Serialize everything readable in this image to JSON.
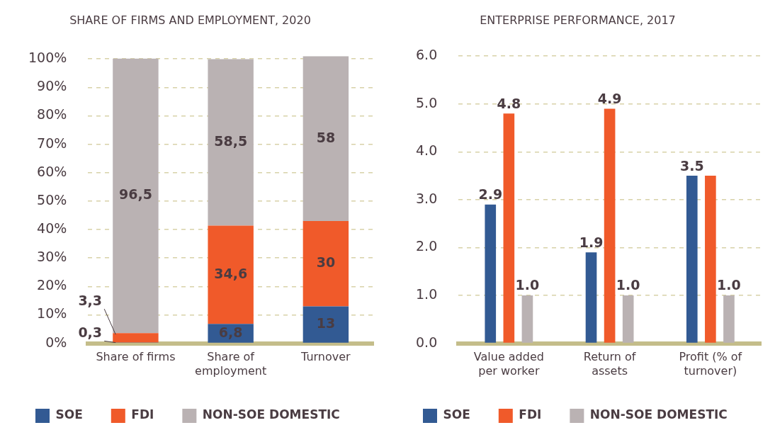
{
  "chart_data": [
    {
      "type": "bar",
      "title": "SHARE OF FIRMS AND EMPLOYMENT, 2020",
      "categories": [
        "Share of firms",
        "Share of employment",
        "Turnover"
      ],
      "stacked": true,
      "ylim": [
        0,
        101
      ],
      "yticks": [
        {
          "value": 0,
          "label": "0%"
        },
        {
          "value": 10,
          "label": "10%"
        },
        {
          "value": 20,
          "label": "20%"
        },
        {
          "value": 30,
          "label": "30%"
        },
        {
          "value": 40,
          "label": "40%"
        },
        {
          "value": 50,
          "label": "50%"
        },
        {
          "value": 60,
          "label": "60%"
        },
        {
          "value": 70,
          "label": "70%"
        },
        {
          "value": 80,
          "label": "80%"
        },
        {
          "value": 90,
          "label": "90%"
        },
        {
          "value": 100,
          "label": "100%"
        }
      ],
      "grid": "y",
      "legend": "bottom",
      "series": [
        {
          "name": "SOE",
          "color": "#325a93",
          "values": [
            0.3,
            6.8,
            13
          ],
          "value_labels": [
            "0,3",
            "6,8",
            "13"
          ]
        },
        {
          "name": "FDI",
          "color": "#f05a2a",
          "values": [
            3.3,
            34.6,
            30
          ],
          "value_labels": [
            "3,3",
            "34,6",
            "30"
          ]
        },
        {
          "name": "NON-SOE DOMESTIC",
          "color": "#bab2b3",
          "values": [
            96.5,
            58.5,
            58
          ],
          "value_labels": [
            "96,5",
            "58,5",
            "58"
          ]
        }
      ]
    },
    {
      "type": "bar",
      "title": "ENTERPRISE PERFORMANCE, 2017",
      "categories": [
        "Value added per worker",
        "Return of assets",
        "Profit (% of turnover)"
      ],
      "ylim": [
        0,
        6
      ],
      "yticks": [
        {
          "value": 0,
          "label": "0.0"
        },
        {
          "value": 1,
          "label": "1.0"
        },
        {
          "value": 2,
          "label": "2.0"
        },
        {
          "value": 3,
          "label": "3.0"
        },
        {
          "value": 4,
          "label": "4.0"
        },
        {
          "value": 5,
          "label": "5.0"
        },
        {
          "value": 6,
          "label": "6.0"
        }
      ],
      "grid": "y",
      "legend": "bottom",
      "series": [
        {
          "name": "SOE",
          "color": "#325a93",
          "values": [
            2.9,
            1.9,
            3.5
          ],
          "value_labels": [
            "2.9",
            "1.9",
            "3.5"
          ]
        },
        {
          "name": "FDI",
          "color": "#f05a2a",
          "values": [
            4.8,
            4.9,
            3.5
          ],
          "value_labels": [
            "4.8",
            "4.9",
            null
          ]
        },
        {
          "name": "NON-SOE DOMESTIC",
          "color": "#bab2b3",
          "values": [
            1.0,
            1.0,
            1.0
          ],
          "value_labels": [
            "1.0",
            "1.0",
            "1.0"
          ]
        }
      ]
    }
  ]
}
